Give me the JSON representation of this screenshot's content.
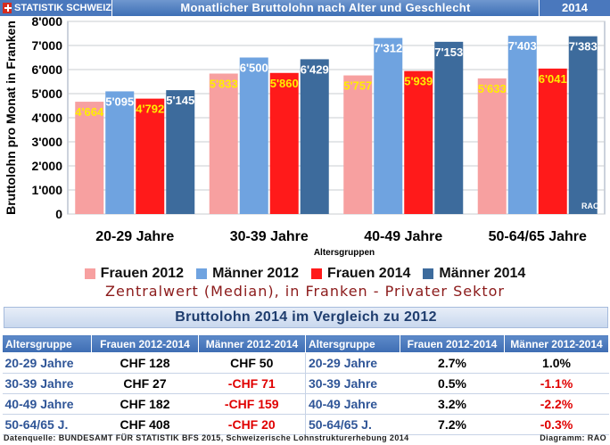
{
  "header": {
    "brand": "STATISTIK SCHWEIZ",
    "title": "Monatlicher Bruttolohn nach Alter und Geschlecht",
    "year": "2014"
  },
  "chart_data": {
    "type": "bar",
    "categories": [
      "20-29 Jahre",
      "30-39 Jahre",
      "40-49 Jahre",
      "50-64/65 Jahre"
    ],
    "series": [
      {
        "name": "Frauen 2012",
        "values": [
          4664,
          5833,
          5757,
          5633
        ],
        "labels": [
          "4'664",
          "5'833",
          "5'757",
          "5'633"
        ],
        "color": "#f7a0a0"
      },
      {
        "name": "Männer 2012",
        "values": [
          5095,
          6500,
          7312,
          7403
        ],
        "labels": [
          "5'095",
          "6'500",
          "7'312",
          "7'403"
        ],
        "color": "#6fa3e0"
      },
      {
        "name": "Frauen 2014",
        "values": [
          4792,
          5860,
          5939,
          6041
        ],
        "labels": [
          "4'792",
          "5'860",
          "5'939",
          "6'041"
        ],
        "color": "#ff1a1a"
      },
      {
        "name": "Männer 2014",
        "values": [
          5145,
          6429,
          7153,
          7383
        ],
        "labels": [
          "5'145",
          "6'429",
          "7'153",
          "7'383"
        ],
        "color": "#3d6b9c"
      }
    ],
    "ylabel": "Bruttolohn pro Monat in Franken",
    "xlabel": "Altersgruppen",
    "ylim": [
      0,
      8000
    ],
    "yticks": [
      0,
      1000,
      2000,
      3000,
      4000,
      5000,
      6000,
      7000,
      8000
    ],
    "ytick_labels": [
      "0",
      "1'000",
      "2'000",
      "3'000",
      "4'000",
      "5'000",
      "6'000",
      "7'000",
      "8'000"
    ],
    "grid": true,
    "legend": "bottom",
    "watermark": "RAO",
    "label_colors": {
      "women": "#ffee00",
      "men": "#ffffff"
    }
  },
  "legend": [
    {
      "label": "Frauen 2012",
      "color": "#f7a0a0"
    },
    {
      "label": "Männer 2012",
      "color": "#6fa3e0"
    },
    {
      "label": "Frauen 2014",
      "color": "#ff1a1a"
    },
    {
      "label": "Männer 2014",
      "color": "#3d6b9c"
    }
  ],
  "subtitle": "Zentralwert (Median), in Franken - Privater Sektor",
  "table": {
    "title": "Bruttolohn 2014 im Vergleich zu 2012",
    "headers": [
      "Altersgruppe",
      "Frauen 2012-2014",
      "Männer 2012-2014",
      "Altersgruppe",
      "Frauen 2012-2014",
      "Männer 2012-2014"
    ],
    "rows": [
      {
        "group": "20-29 Jahre",
        "f_abs": "CHF 128",
        "m_abs": "CHF 50",
        "group2": "20-29 Jahre",
        "f_pct": "2.7%",
        "m_pct": "1.0%"
      },
      {
        "group": "30-39 Jahre",
        "f_abs": "CHF 27",
        "m_abs": "-CHF 71",
        "group2": "30-39 Jahre",
        "f_pct": "0.5%",
        "m_pct": "-1.1%"
      },
      {
        "group": "40-49 Jahre",
        "f_abs": "CHF 182",
        "m_abs": "-CHF 159",
        "group2": "40-49 Jahre",
        "f_pct": "3.2%",
        "m_pct": "-2.2%"
      },
      {
        "group": "50-64/65 J.",
        "f_abs": "CHF 408",
        "m_abs": "-CHF 20",
        "group2": "50-64/65 J.",
        "f_pct": "7.2%",
        "m_pct": "-0.3%"
      }
    ]
  },
  "footer": {
    "source": "Datenquelle: BUNDESAMT FÜR STATISTIK BFS 2015, Schweizerische Lohnstrukturerhebung 2014",
    "credit": "Diagramm: RAO"
  }
}
